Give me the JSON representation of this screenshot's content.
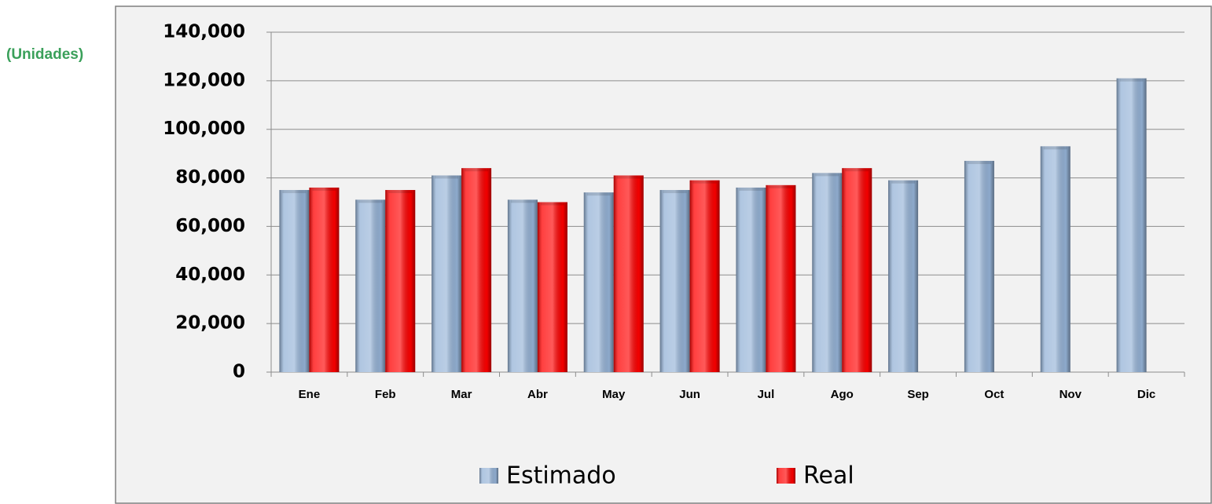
{
  "chart_data": {
    "type": "bar",
    "y_label": "(Unidades)",
    "categories": [
      "Ene",
      "Feb",
      "Mar",
      "Abr",
      "May",
      "Jun",
      "Jul",
      "Ago",
      "Sep",
      "Oct",
      "Nov",
      "Dic"
    ],
    "series": [
      {
        "name": "Estimado",
        "color": "#95b3d7",
        "values": [
          75000,
          71000,
          81000,
          71000,
          74000,
          75000,
          76000,
          82000,
          79000,
          87000,
          93000,
          121000
        ]
      },
      {
        "name": "Real",
        "color": "#ff0000",
        "values": [
          76000,
          75000,
          84000,
          70000,
          81000,
          79000,
          77000,
          84000,
          null,
          null,
          null,
          null
        ]
      }
    ],
    "ylim": [
      0,
      140000
    ],
    "yticks": [
      0,
      {
        "value": 20000,
        "label": "20,000"
      },
      {
        "value": 40000,
        "label": "40,000"
      },
      {
        "value": 60000,
        "label": "60,000"
      },
      {
        "value": 80000,
        "label": "80,000"
      },
      {
        "value": 100000,
        "label": "100,000"
      },
      {
        "value": 120000,
        "label": "120,000"
      },
      {
        "value": 140000,
        "label": "140,000"
      }
    ],
    "grid": true,
    "legend": "bottom"
  }
}
